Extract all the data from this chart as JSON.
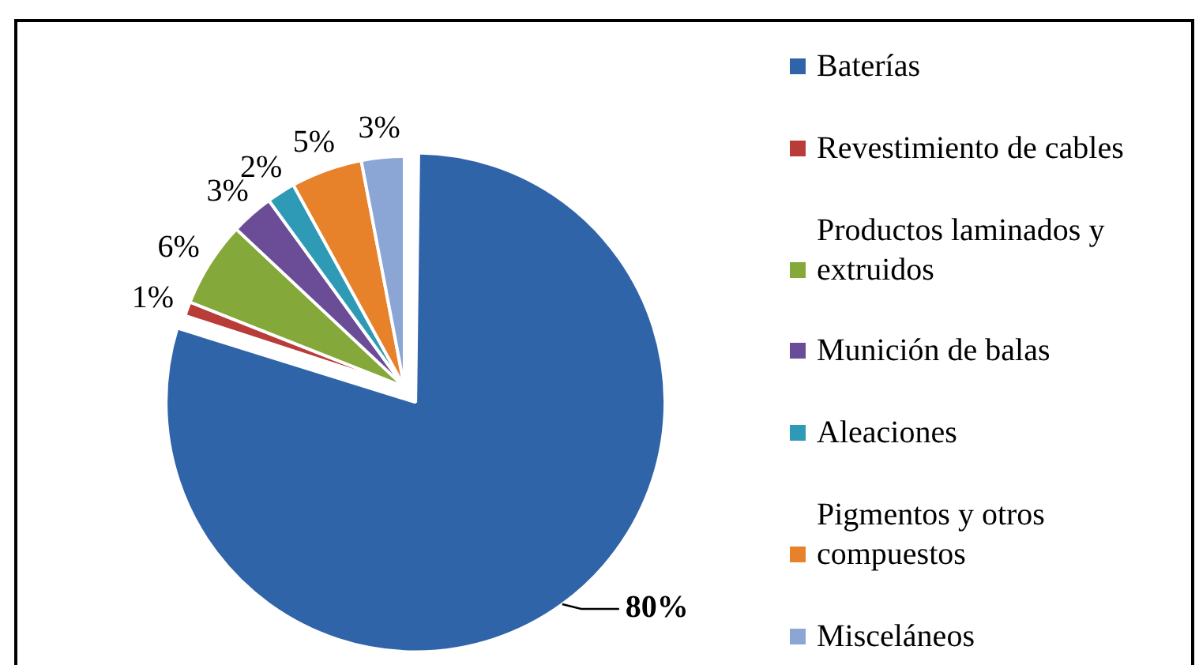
{
  "chart_data": {
    "type": "pie",
    "categories": [
      "Baterías",
      "Revestimiento de cables",
      "Productos laminados y extruidos",
      "Munición de balas",
      "Aleaciones",
      "Pigmentos y otros compuestos",
      "Misceláneos"
    ],
    "values": [
      80,
      1,
      6,
      3,
      2,
      5,
      3
    ],
    "colors": [
      "#3064a9",
      "#b83c38",
      "#84a83a",
      "#6b4c96",
      "#2f9ab6",
      "#e8822a",
      "#8ba6d4"
    ],
    "value_labels": [
      "80%",
      "1%",
      "6%",
      "3%",
      "2%",
      "5%",
      "3%"
    ],
    "legend": "right"
  }
}
